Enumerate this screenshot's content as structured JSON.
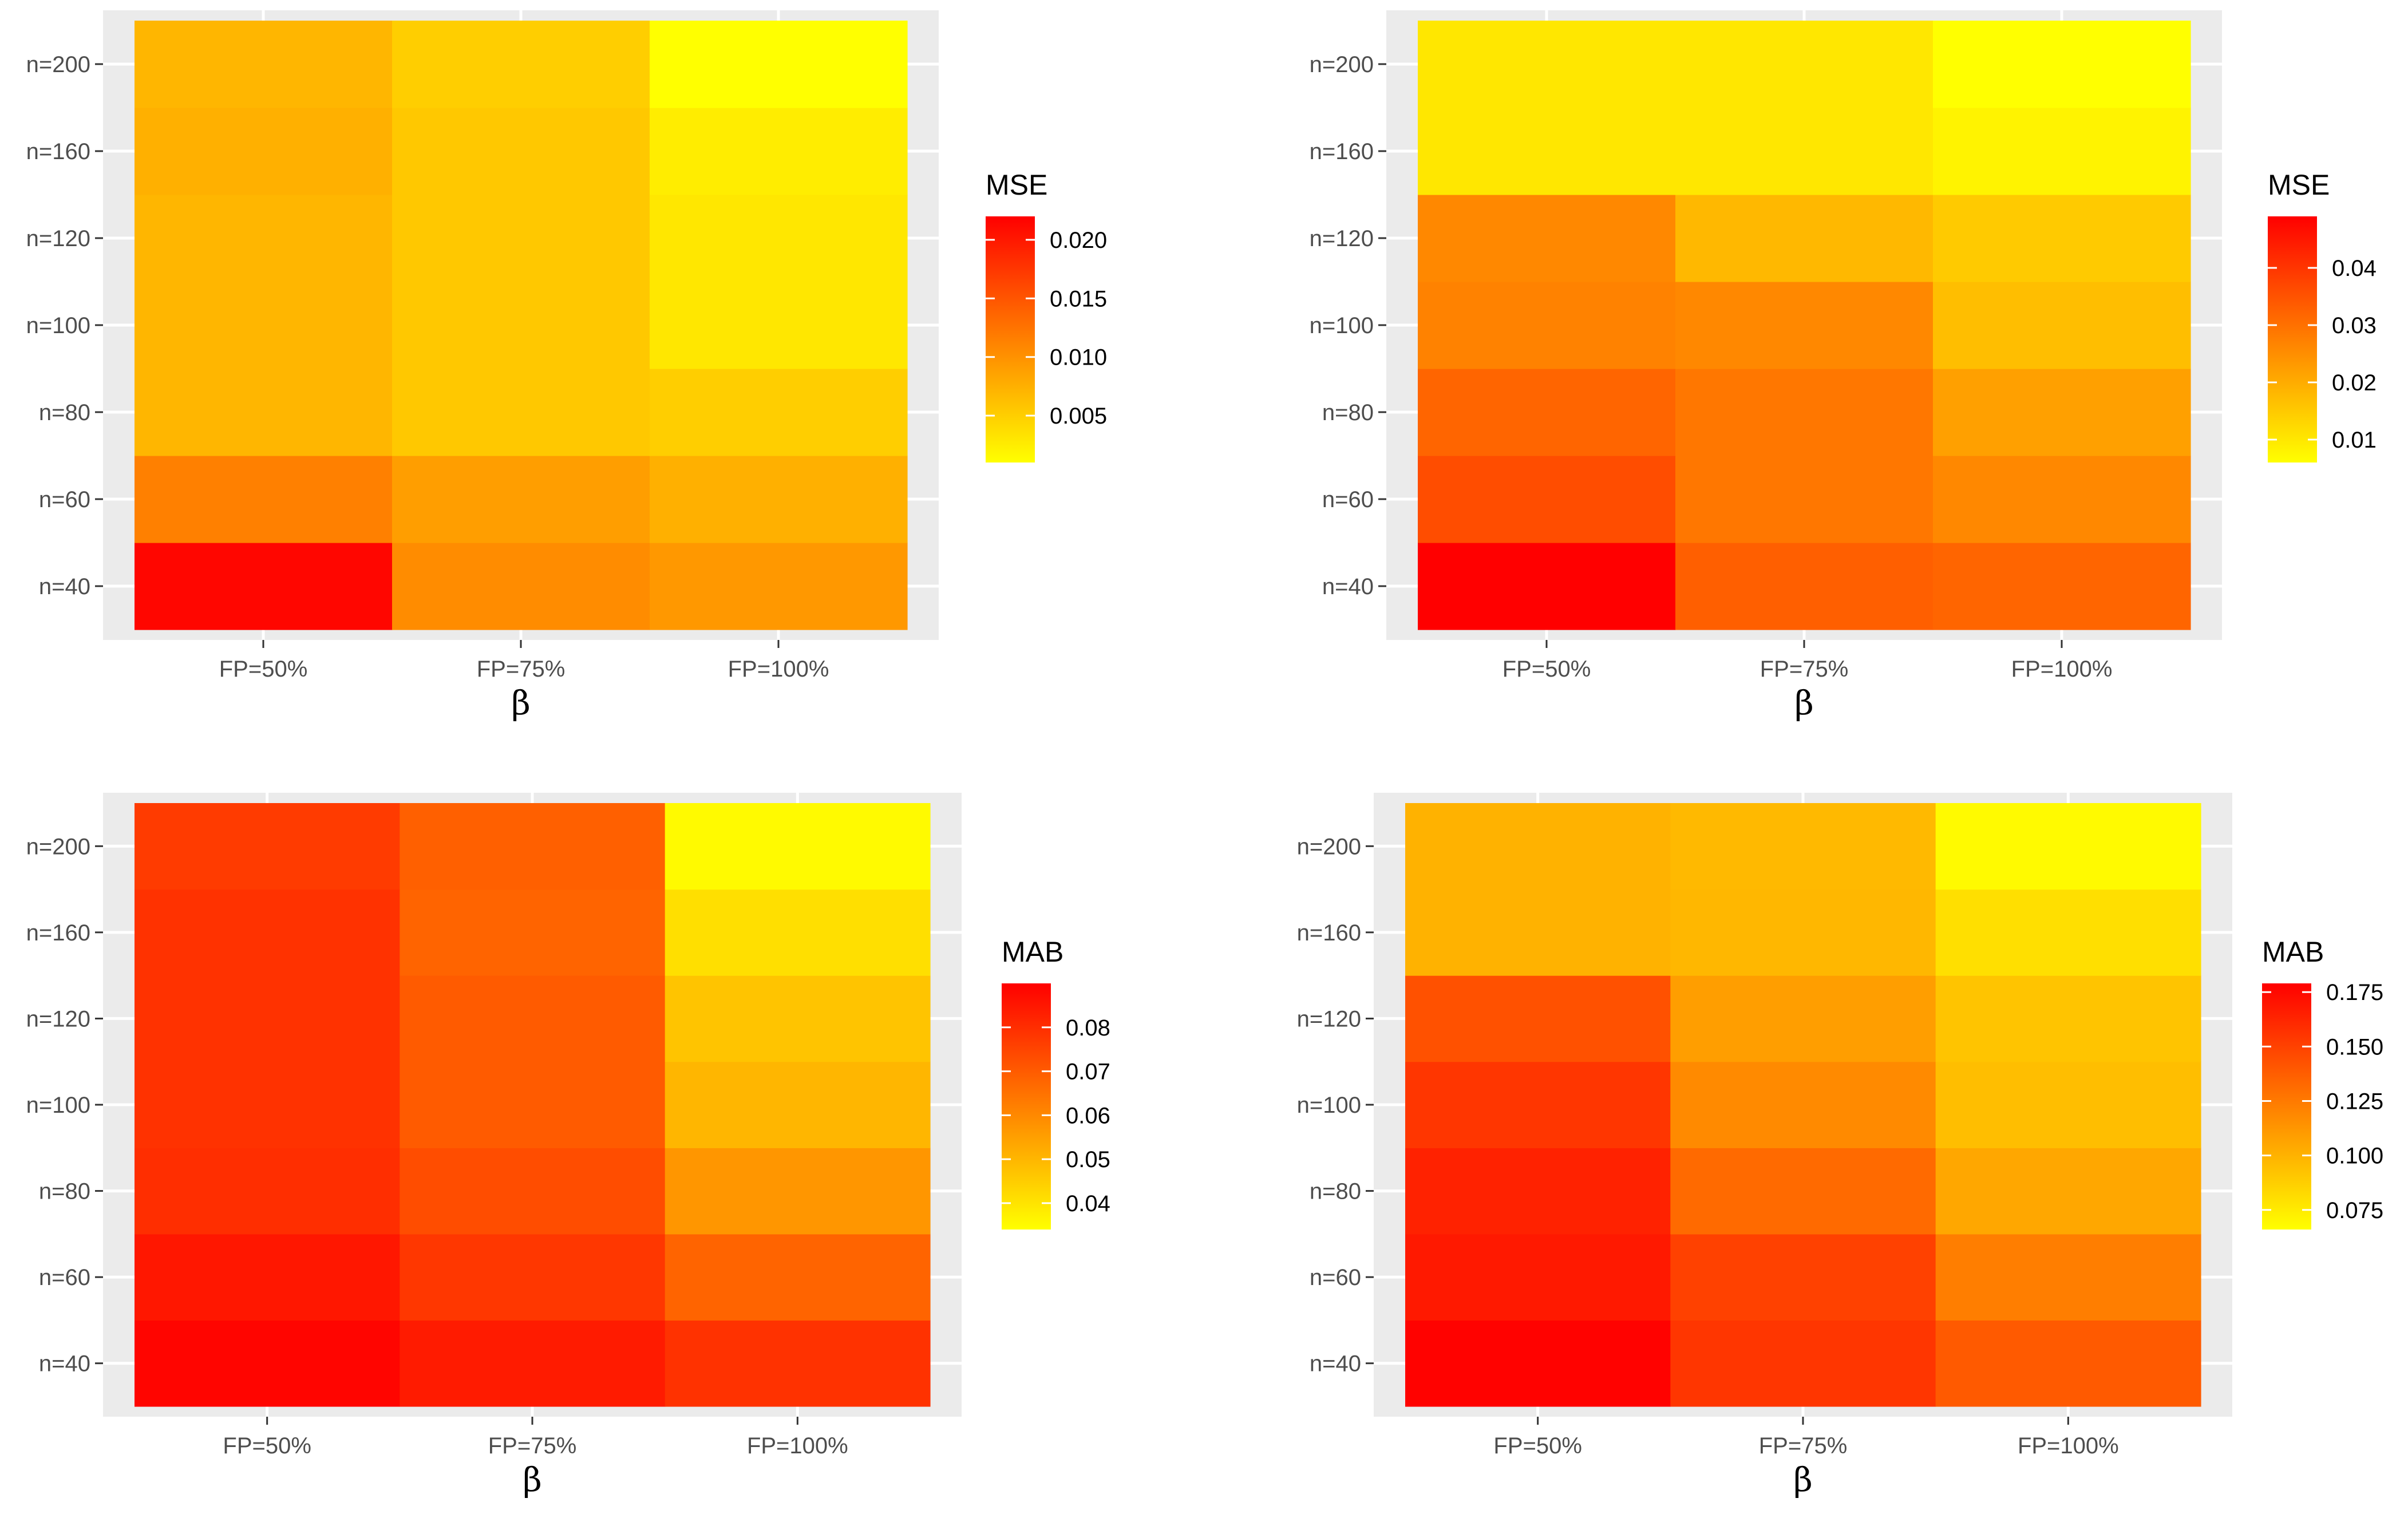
{
  "chart_data": [
    {
      "type": "heatmap",
      "title": "",
      "xlabel": "β",
      "ylabel": "",
      "x_categories": [
        "FP=50%",
        "FP=75%",
        "FP=100%"
      ],
      "y_categories": [
        "n=40",
        "n=60",
        "n=80",
        "n=100",
        "n=120",
        "n=160",
        "n=200"
      ],
      "values": [
        [
          0.0215,
          0.0105,
          0.0095
        ],
        [
          0.0115,
          0.009,
          0.0075
        ],
        [
          0.007,
          0.0055,
          0.005
        ],
        [
          0.007,
          0.0055,
          0.003
        ],
        [
          0.007,
          0.0055,
          0.003
        ],
        [
          0.0075,
          0.0055,
          0.0025
        ],
        [
          0.007,
          0.005,
          0.001
        ]
      ],
      "legend": {
        "title": "MSE",
        "ticks": [
          "0.020",
          "0.015",
          "0.010",
          "0.005"
        ],
        "min": 0.001,
        "max": 0.022
      },
      "colors": {
        "low": "#ffff00",
        "high": "#ff0000"
      }
    },
    {
      "type": "heatmap",
      "title": "",
      "xlabel": "β",
      "ylabel": "",
      "x_categories": [
        "FP=50%",
        "FP=75%",
        "FP=100%"
      ],
      "y_categories": [
        "n=40",
        "n=60",
        "n=80",
        "n=100",
        "n=120",
        "n=160",
        "n=200"
      ],
      "values": [
        [
          0.049,
          0.033,
          0.032
        ],
        [
          0.036,
          0.029,
          0.026
        ],
        [
          0.032,
          0.029,
          0.022
        ],
        [
          0.027,
          0.026,
          0.017
        ],
        [
          0.026,
          0.018,
          0.015
        ],
        [
          0.01,
          0.01,
          0.008
        ],
        [
          0.01,
          0.01,
          0.006
        ]
      ],
      "legend": {
        "title": "MSE",
        "ticks": [
          "0.04",
          "0.03",
          "0.02",
          "0.01"
        ],
        "min": 0.006,
        "max": 0.049
      },
      "colors": {
        "low": "#ffff00",
        "high": "#ff0000"
      }
    },
    {
      "type": "heatmap",
      "title": "",
      "xlabel": "β",
      "ylabel": "",
      "x_categories": [
        "FP=50%",
        "FP=75%",
        "FP=100%"
      ],
      "y_categories": [
        "n=40",
        "n=60",
        "n=80",
        "n=100",
        "n=120",
        "n=160",
        "n=200"
      ],
      "values": [
        [
          0.089,
          0.084,
          0.079
        ],
        [
          0.085,
          0.078,
          0.068
        ],
        [
          0.08,
          0.073,
          0.057
        ],
        [
          0.079,
          0.07,
          0.05
        ],
        [
          0.079,
          0.07,
          0.047
        ],
        [
          0.079,
          0.068,
          0.041
        ],
        [
          0.077,
          0.069,
          0.035
        ]
      ],
      "legend": {
        "title": "MAB",
        "ticks": [
          "0.08",
          "0.07",
          "0.06",
          "0.05",
          "0.04"
        ],
        "min": 0.034,
        "max": 0.09
      },
      "colors": {
        "low": "#ffff00",
        "high": "#ff0000"
      }
    },
    {
      "type": "heatmap",
      "title": "",
      "xlabel": "β",
      "ylabel": "",
      "x_categories": [
        "FP=50%",
        "FP=75%",
        "FP=100%"
      ],
      "y_categories": [
        "n=40",
        "n=60",
        "n=80",
        "n=100",
        "n=120",
        "n=160",
        "n=200"
      ],
      "values": [
        [
          0.178,
          0.155,
          0.139
        ],
        [
          0.168,
          0.15,
          0.123
        ],
        [
          0.164,
          0.132,
          0.105
        ],
        [
          0.155,
          0.118,
          0.095
        ],
        [
          0.143,
          0.109,
          0.092
        ],
        [
          0.1,
          0.098,
          0.08
        ],
        [
          0.1,
          0.097,
          0.068
        ]
      ],
      "legend": {
        "title": "MAB",
        "ticks": [
          "0.175",
          "0.150",
          "0.125",
          "0.100",
          "0.075"
        ],
        "min": 0.066,
        "max": 0.179
      },
      "colors": {
        "low": "#ffff00",
        "high": "#ff0000"
      }
    }
  ]
}
